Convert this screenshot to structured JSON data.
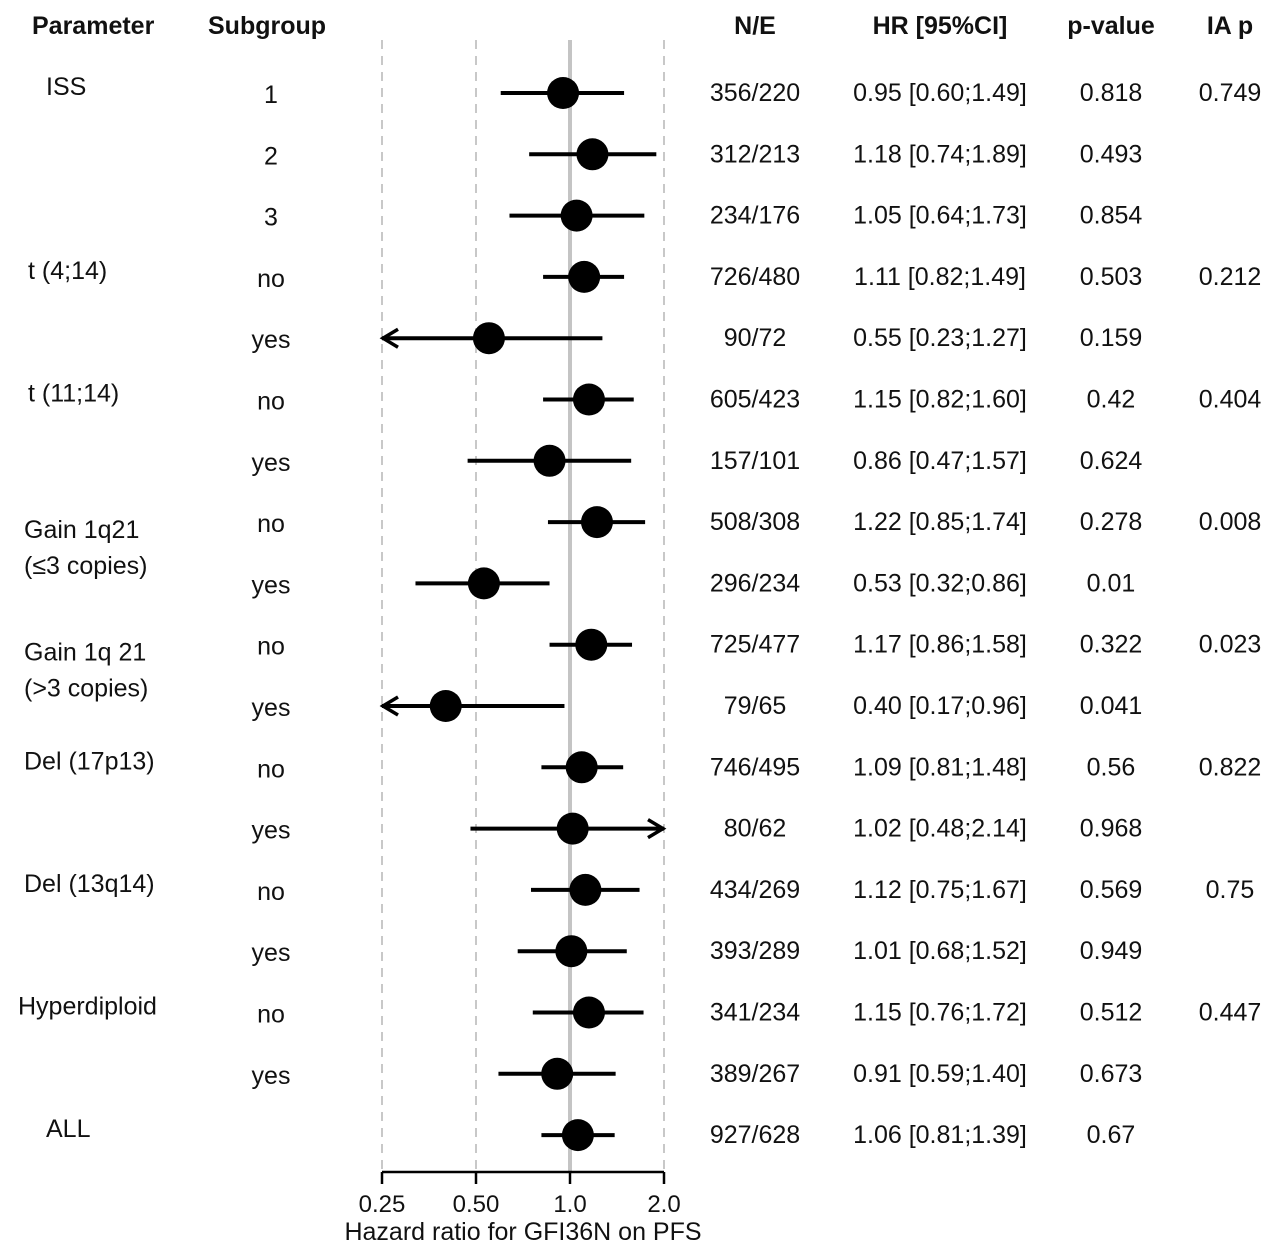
{
  "chart_data": {
    "type": "forest",
    "x_scale": "log2",
    "xlim": [
      0.25,
      2.0
    ],
    "reference_line": 1.0,
    "xlabel": "Hazard ratio for GFI36N on PFS",
    "xticks": [
      0.25,
      0.5,
      1.0,
      2.0
    ],
    "xtick_labels": [
      "0.25",
      "0.50",
      "1.0",
      "2.0"
    ],
    "dashed_gridlines": [
      0.25,
      0.5,
      2.0
    ],
    "headers": {
      "parameter": "Parameter",
      "subgroup": "Subgroup",
      "ne": "N/E",
      "hr": "HR [95%CI]",
      "pvalue": "p-value",
      "iap": "IA p"
    },
    "rows": [
      {
        "parameter": [
          "ISS"
        ],
        "subgroup": "1",
        "ne": "356/220",
        "hr_text": "0.95 [0.60;1.49]",
        "p": "0.818",
        "ia_p": "0.749",
        "hr": 0.95,
        "lo": 0.6,
        "hi": 1.49
      },
      {
        "parameter": [],
        "subgroup": "2",
        "ne": "312/213",
        "hr_text": "1.18 [0.74;1.89]",
        "p": "0.493",
        "ia_p": "",
        "hr": 1.18,
        "lo": 0.74,
        "hi": 1.89
      },
      {
        "parameter": [],
        "subgroup": "3",
        "ne": "234/176",
        "hr_text": "1.05 [0.64;1.73]",
        "p": "0.854",
        "ia_p": "",
        "hr": 1.05,
        "lo": 0.64,
        "hi": 1.73
      },
      {
        "parameter": [
          "t (4;14)"
        ],
        "subgroup": "no",
        "ne": "726/480",
        "hr_text": "1.11 [0.82;1.49]",
        "p": "0.503",
        "ia_p": "0.212",
        "hr": 1.11,
        "lo": 0.82,
        "hi": 1.49
      },
      {
        "parameter": [],
        "subgroup": "yes",
        "ne": "90/72",
        "hr_text": "0.55 [0.23;1.27]",
        "p": "0.159",
        "ia_p": "",
        "hr": 0.55,
        "lo": 0.23,
        "hi": 1.27
      },
      {
        "parameter": [
          "t (11;14)"
        ],
        "subgroup": "no",
        "ne": "605/423",
        "hr_text": "1.15 [0.82;1.60]",
        "p": "0.42",
        "ia_p": "0.404",
        "hr": 1.15,
        "lo": 0.82,
        "hi": 1.6
      },
      {
        "parameter": [],
        "subgroup": "yes",
        "ne": "157/101",
        "hr_text": "0.86 [0.47;1.57]",
        "p": "0.624",
        "ia_p": "",
        "hr": 0.86,
        "lo": 0.47,
        "hi": 1.57
      },
      {
        "parameter": [
          "Gain 1q21",
          "(≤3 copies)"
        ],
        "subgroup": "no",
        "ne": "508/308",
        "hr_text": "1.22 [0.85;1.74]",
        "p": "0.278",
        "ia_p": "0.008",
        "hr": 1.22,
        "lo": 0.85,
        "hi": 1.74
      },
      {
        "parameter": [],
        "subgroup": "yes",
        "ne": "296/234",
        "hr_text": "0.53 [0.32;0.86]",
        "p": "0.01",
        "ia_p": "",
        "hr": 0.53,
        "lo": 0.32,
        "hi": 0.86
      },
      {
        "parameter": [
          "Gain 1q 21",
          "(>3 copies)"
        ],
        "subgroup": "no",
        "ne": "725/477",
        "hr_text": "1.17 [0.86;1.58]",
        "p": "0.322",
        "ia_p": "0.023",
        "hr": 1.17,
        "lo": 0.86,
        "hi": 1.58
      },
      {
        "parameter": [],
        "subgroup": "yes",
        "ne": "79/65",
        "hr_text": "0.40 [0.17;0.96]",
        "p": "0.041",
        "ia_p": "",
        "hr": 0.4,
        "lo": 0.17,
        "hi": 0.96
      },
      {
        "parameter": [
          "Del (17p13)"
        ],
        "subgroup": "no",
        "ne": "746/495",
        "hr_text": "1.09 [0.81;1.48]",
        "p": "0.56",
        "ia_p": "0.822",
        "hr": 1.09,
        "lo": 0.81,
        "hi": 1.48
      },
      {
        "parameter": [],
        "subgroup": "yes",
        "ne": "80/62",
        "hr_text": "1.02 [0.48;2.14]",
        "p": "0.968",
        "ia_p": "",
        "hr": 1.02,
        "lo": 0.48,
        "hi": 2.14
      },
      {
        "parameter": [
          "Del (13q14)"
        ],
        "subgroup": "no",
        "ne": "434/269",
        "hr_text": "1.12 [0.75;1.67]",
        "p": "0.569",
        "ia_p": "0.75",
        "hr": 1.12,
        "lo": 0.75,
        "hi": 1.67
      },
      {
        "parameter": [],
        "subgroup": "yes",
        "ne": "393/289",
        "hr_text": "1.01 [0.68;1.52]",
        "p": "0.949",
        "ia_p": "",
        "hr": 1.01,
        "lo": 0.68,
        "hi": 1.52
      },
      {
        "parameter": [
          "Hyperdiploid"
        ],
        "subgroup": "no",
        "ne": "341/234",
        "hr_text": "1.15 [0.76;1.72]",
        "p": "0.512",
        "ia_p": "0.447",
        "hr": 1.15,
        "lo": 0.76,
        "hi": 1.72
      },
      {
        "parameter": [],
        "subgroup": "yes",
        "ne": "389/267",
        "hr_text": "0.91 [0.59;1.40]",
        "p": "0.673",
        "ia_p": "",
        "hr": 0.91,
        "lo": 0.59,
        "hi": 1.4
      },
      {
        "parameter": [
          "ALL"
        ],
        "subgroup": "",
        "ne": "927/628",
        "hr_text": "1.06 [0.81;1.39]",
        "p": "0.67",
        "ia_p": "",
        "hr": 1.06,
        "lo": 0.81,
        "hi": 1.39
      }
    ]
  }
}
